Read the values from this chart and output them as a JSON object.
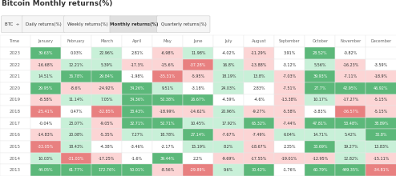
{
  "title": "Bitcoin Monthly returns(%)",
  "active_tab": "Monthly returns(%)",
  "columns": [
    "Time",
    "January",
    "February",
    "March",
    "April",
    "May",
    "June",
    "July",
    "August",
    "September",
    "October",
    "November",
    "December"
  ],
  "rows": [
    {
      "year": "2023",
      "values": [
        39.63,
        0.03,
        22.96,
        2.81,
        -6.98,
        11.98,
        -4.02,
        -11.29,
        3.91,
        28.52,
        -0.82,
        null
      ]
    },
    {
      "year": "2022",
      "values": [
        -16.68,
        12.21,
        5.39,
        -17.3,
        -15.6,
        -37.28,
        16.8,
        -13.88,
        -3.12,
        5.56,
        -16.23,
        -3.59
      ]
    },
    {
      "year": "2021",
      "values": [
        14.51,
        36.78,
        29.84,
        -1.98,
        -35.31,
        -5.95,
        18.19,
        13.8,
        -7.03,
        39.93,
        -7.11,
        -18.9
      ]
    },
    {
      "year": "2020",
      "values": [
        29.95,
        -8.6,
        -24.92,
        34.26,
        9.51,
        -3.18,
        24.03,
        2.83,
        -7.51,
        27.7,
        42.95,
        46.92
      ]
    },
    {
      "year": "2019",
      "values": [
        -8.58,
        11.14,
        7.05,
        34.36,
        52.38,
        26.67,
        -4.59,
        -4.6,
        -13.38,
        10.17,
        -17.27,
        -5.15
      ]
    },
    {
      "year": "2018",
      "values": [
        -25.41,
        0.47,
        -32.85,
        33.43,
        -18.99,
        -14.62,
        20.96,
        -9.27,
        -5.58,
        -3.83,
        -36.57,
        -5.15
      ]
    },
    {
      "year": "2017",
      "values": [
        -0.04,
        23.07,
        -9.05,
        32.71,
        52.71,
        10.45,
        17.92,
        65.32,
        -7.44,
        47.81,
        53.48,
        38.89
      ]
    },
    {
      "year": "2016",
      "values": [
        -14.83,
        20.08,
        -5.35,
        7.27,
        18.78,
        27.14,
        -7.67,
        -7.49,
        6.04,
        14.71,
        5.42,
        30.8
      ]
    },
    {
      "year": "2015",
      "values": [
        -33.05,
        18.43,
        -4.38,
        -3.46,
        -2.17,
        15.19,
        8.2,
        -18.67,
        2.35,
        33.69,
        19.27,
        13.83
      ]
    },
    {
      "year": "2014",
      "values": [
        10.03,
        -31.03,
        -17.25,
        -1.6,
        39.44,
        2.2,
        -9.69,
        -17.55,
        -19.01,
        -12.95,
        12.82,
        -15.11
      ]
    },
    {
      "year": "2013",
      "values": [
        44.05,
        61.77,
        172.76,
        50.01,
        -8.56,
        -29.89,
        9.6,
        30.42,
        -1.76,
        60.79,
        449.35,
        -34.81
      ]
    }
  ],
  "bg_color": "#ffffff",
  "positive_light": "#c8f0d8",
  "negative_light": "#fcd5d5",
  "positive_strong": "#5cb87a",
  "negative_strong": "#e88080",
  "text_color": "#333333",
  "header_text": "#666666",
  "tab_active_bg": "#e0e0e0",
  "tab_inactive_bg": "#f5f5f5",
  "tab_border": "#cccccc",
  "cell_border": "#e8e8e8"
}
